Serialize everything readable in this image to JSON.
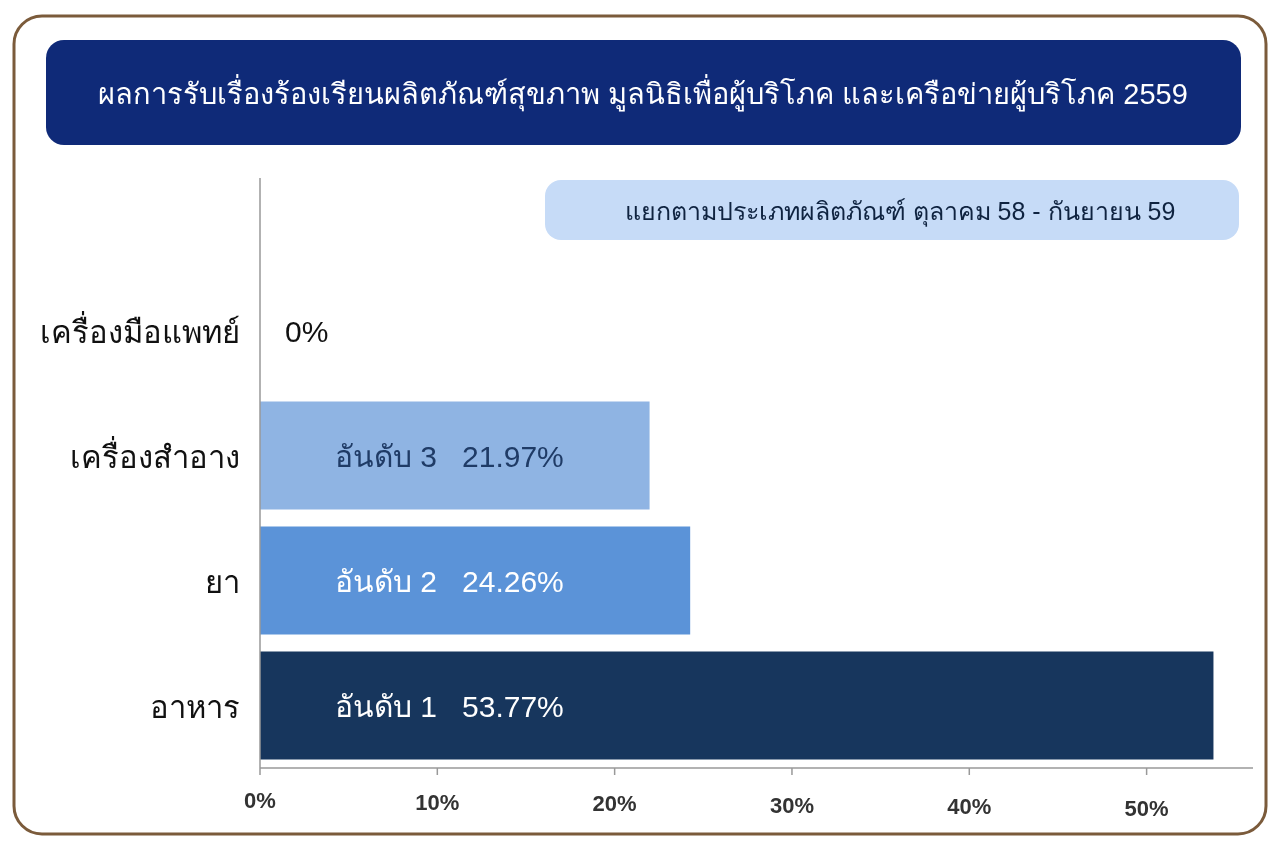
{
  "chart_data": {
    "type": "bar",
    "orientation": "horizontal",
    "title": "ผลการรับเรื่องร้องเรียนผลิตภัณฑ์สุขภาพ มูลนิธิเพื่อผู้บริโภค และเครือข่ายผู้บริโภค 2559",
    "subtitle": "แยกตามประเภทผลิตภัณฑ์      ตุลาคม 58 - กันยายน 59",
    "categories": [
      "เครื่องมือแพทย์",
      "เครื่องสำอาง",
      "ยา",
      "อาหาร"
    ],
    "values": [
      0,
      21.97,
      24.26,
      53.77
    ],
    "colors": [
      "#8fb4e3",
      "#8fb4e3",
      "#5b93d8",
      "#17365d"
    ],
    "value_labels": [
      "0%",
      "อันดับ 3   21.97%",
      "อันดับ 2   24.26%",
      "อันดับ 1   53.77%"
    ],
    "xlim": [
      0,
      56
    ],
    "xticks": [
      {
        "value": 0,
        "label": "0%"
      },
      {
        "value": 10,
        "label": "10%"
      },
      {
        "value": 20,
        "label": "20%"
      },
      {
        "value": 30,
        "label": "30%"
      },
      {
        "value": 40,
        "label": "40%"
      },
      {
        "value": 50,
        "label": "50%"
      }
    ]
  }
}
